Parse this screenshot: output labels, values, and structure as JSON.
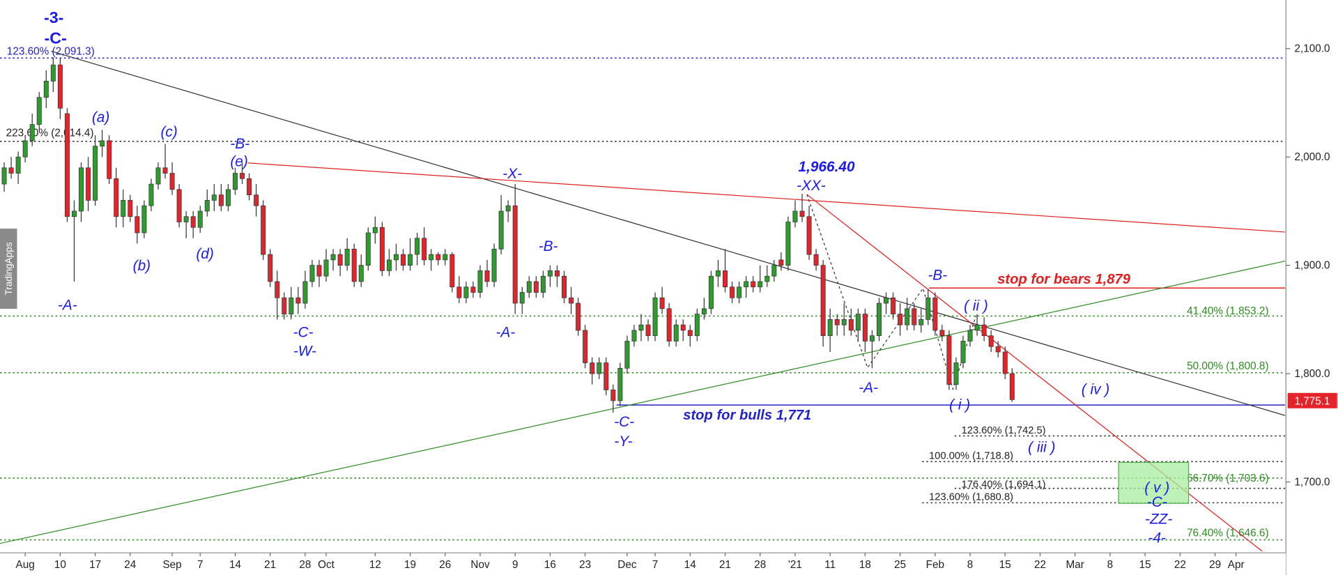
{
  "chart_data": {
    "type": "candlestick",
    "watermark": "TradingApps",
    "up_color": "#2f9b2f",
    "down_color": "#e5232b",
    "ylim": [
      1634.6,
      2144.9
    ],
    "yticks": [
      {
        "value": 2100,
        "label": "2,100.0"
      },
      {
        "value": 2000,
        "label": "2,000.0"
      },
      {
        "value": 1900,
        "label": "1,900.0"
      },
      {
        "value": 1800,
        "label": "1,800.0"
      },
      {
        "value": 1700,
        "label": "1,700.0"
      }
    ],
    "xlim": [
      -0.6,
      183
    ],
    "xticks": [
      {
        "value": 3,
        "label": "Aug"
      },
      {
        "value": 8,
        "label": "10"
      },
      {
        "value": 13,
        "label": "17"
      },
      {
        "value": 18,
        "label": "24"
      },
      {
        "value": 24,
        "label": "Sep"
      },
      {
        "value": 28,
        "label": "7"
      },
      {
        "value": 33,
        "label": "14"
      },
      {
        "value": 38,
        "label": "21"
      },
      {
        "value": 43,
        "label": "28"
      },
      {
        "value": 46,
        "label": "Oct"
      },
      {
        "value": 53,
        "label": "12"
      },
      {
        "value": 58,
        "label": "19"
      },
      {
        "value": 63,
        "label": "26"
      },
      {
        "value": 68,
        "label": "Nov"
      },
      {
        "value": 73,
        "label": "9"
      },
      {
        "value": 78,
        "label": "16"
      },
      {
        "value": 83,
        "label": "23"
      },
      {
        "value": 89,
        "label": "Dec"
      },
      {
        "value": 93,
        "label": "7"
      },
      {
        "value": 98,
        "label": "14"
      },
      {
        "value": 103,
        "label": "21"
      },
      {
        "value": 108,
        "label": "28"
      },
      {
        "value": 113,
        "label": "'21"
      },
      {
        "value": 118,
        "label": "11"
      },
      {
        "value": 123,
        "label": "18"
      },
      {
        "value": 128,
        "label": "25"
      },
      {
        "value": 133,
        "label": "Feb"
      },
      {
        "value": 138,
        "label": "8"
      },
      {
        "value": 143,
        "label": "15"
      },
      {
        "value": 148,
        "label": "22"
      },
      {
        "value": 153,
        "label": "Mar"
      },
      {
        "value": 158,
        "label": "8"
      },
      {
        "value": 163,
        "label": "15"
      },
      {
        "value": 168,
        "label": "22"
      },
      {
        "value": 173,
        "label": "29"
      },
      {
        "value": 176,
        "label": "Apr"
      }
    ],
    "last": {
      "value": 1775.1,
      "label": "1,775.1",
      "color": "#e5232b"
    },
    "levels": [
      {
        "value": 2091.3,
        "label": "123.60% (2,091.3)",
        "color": "#2222cc",
        "style": "dotted"
      },
      {
        "value": 2014.4,
        "label": "223.60% (2,014.4)",
        "color": "#333333",
        "style": "dotted"
      },
      {
        "value": 1853.2,
        "label": "41.40% (1,853.2)",
        "color": "#2e8b22",
        "style": "dotted"
      },
      {
        "value": 1800.8,
        "label": "50.00% (1,800.8)",
        "color": "#2e8b22",
        "style": "dotted"
      },
      {
        "value": 1742.5,
        "label": "123.60% (1,742.5)",
        "color": "#333333",
        "style": "dotted"
      },
      {
        "value": 1718.8,
        "label": "100.00% (1,718.8)",
        "color": "#333333",
        "style": "dotted"
      },
      {
        "value": 1703.6,
        "label": "66.70% (1,703.6)",
        "color": "#2e8b22",
        "style": "dotted"
      },
      {
        "value": 1694.1,
        "label": "176.40% (1,694.1)",
        "color": "#333333",
        "style": "dotted"
      },
      {
        "value": 1680.8,
        "label": "123.60% (1,680.8)",
        "color": "#333333",
        "style": "dotted"
      },
      {
        "value": 1646.6,
        "label": "76.40% (1,646.6)",
        "color": "#2e8b22",
        "style": "dotted"
      },
      {
        "value": 1879,
        "label": "stop for bears 1,879",
        "color": "#e02020",
        "style": "solid"
      },
      {
        "value": 1771,
        "label": "stop for bulls 1,771",
        "color": "#2222cc",
        "style": "solid"
      }
    ],
    "annotations": [
      "-3-",
      "-C-",
      "(a)",
      "(c)",
      "-B-",
      "(e)",
      "(b)",
      "(d)",
      "-A-",
      "-C-",
      "-W-",
      "-X-",
      "-B-",
      "-A-",
      "1,966.40",
      "-XX-",
      "-C-",
      "-Y-",
      "-B-",
      "( ii )",
      "-A-",
      "( i )",
      "( iii )",
      "( iv )",
      "( v )",
      "-C-",
      "-ZZ-",
      "-4-"
    ],
    "ohlc": [
      [
        1975,
        1995,
        1968,
        1990
      ],
      [
        1990,
        2000,
        1980,
        1985
      ],
      [
        1985,
        2005,
        1975,
        2000
      ],
      [
        2000,
        2020,
        1995,
        2015
      ],
      [
        2015,
        2040,
        2010,
        2030
      ],
      [
        2030,
        2060,
        2025,
        2055
      ],
      [
        2055,
        2080,
        2045,
        2070
      ],
      [
        2070,
        2092,
        2060,
        2085
      ],
      [
        2085,
        2091,
        2035,
        2045
      ],
      [
        2040,
        2045,
        1940,
        1945
      ],
      [
        1945,
        1960,
        1885,
        1950
      ],
      [
        1950,
        1995,
        1940,
        1990
      ],
      [
        1990,
        2000,
        1950,
        1960
      ],
      [
        1960,
        2020,
        1955,
        2010
      ],
      [
        2010,
        2025,
        2000,
        2015
      ],
      [
        2015,
        2020,
        1975,
        1980
      ],
      [
        1980,
        1990,
        1935,
        1945
      ],
      [
        1945,
        1970,
        1935,
        1960
      ],
      [
        1960,
        1965,
        1940,
        1945
      ],
      [
        1945,
        1955,
        1920,
        1930
      ],
      [
        1930,
        1960,
        1925,
        1955
      ],
      [
        1955,
        1980,
        1950,
        1975
      ],
      [
        1975,
        1995,
        1970,
        1990
      ],
      [
        1990,
        2012,
        1980,
        1985
      ],
      [
        1985,
        1995,
        1965,
        1970
      ],
      [
        1970,
        1975,
        1935,
        1940
      ],
      [
        1940,
        1950,
        1925,
        1945
      ],
      [
        1945,
        1950,
        1925,
        1935
      ],
      [
        1935,
        1955,
        1930,
        1950
      ],
      [
        1950,
        1970,
        1945,
        1960
      ],
      [
        1960,
        1975,
        1950,
        1965
      ],
      [
        1965,
        1975,
        1950,
        1955
      ],
      [
        1955,
        1975,
        1950,
        1970
      ],
      [
        1970,
        1990,
        1965,
        1985
      ],
      [
        1985,
        1995,
        1975,
        1980
      ],
      [
        1980,
        1985,
        1960,
        1965
      ],
      [
        1965,
        1975,
        1945,
        1955
      ],
      [
        1955,
        1960,
        1905,
        1910
      ],
      [
        1910,
        1915,
        1880,
        1885
      ],
      [
        1885,
        1895,
        1850,
        1870
      ],
      [
        1870,
        1875,
        1850,
        1855
      ],
      [
        1855,
        1880,
        1850,
        1870
      ],
      [
        1870,
        1880,
        1855,
        1865
      ],
      [
        1865,
        1895,
        1860,
        1885
      ],
      [
        1885,
        1905,
        1880,
        1900
      ],
      [
        1900,
        1905,
        1880,
        1890
      ],
      [
        1890,
        1915,
        1885,
        1905
      ],
      [
        1905,
        1915,
        1895,
        1910
      ],
      [
        1910,
        1915,
        1890,
        1900
      ],
      [
        1900,
        1925,
        1895,
        1915
      ],
      [
        1915,
        1920,
        1880,
        1885
      ],
      [
        1885,
        1910,
        1880,
        1900
      ],
      [
        1900,
        1935,
        1895,
        1930
      ],
      [
        1930,
        1945,
        1920,
        1935
      ],
      [
        1935,
        1940,
        1890,
        1895
      ],
      [
        1895,
        1915,
        1890,
        1905
      ],
      [
        1905,
        1920,
        1895,
        1910
      ],
      [
        1910,
        1915,
        1895,
        1900
      ],
      [
        1900,
        1925,
        1895,
        1910
      ],
      [
        1910,
        1930,
        1900,
        1925
      ],
      [
        1925,
        1935,
        1900,
        1905
      ],
      [
        1905,
        1915,
        1895,
        1910
      ],
      [
        1910,
        1912,
        1900,
        1905
      ],
      [
        1905,
        1915,
        1900,
        1910
      ],
      [
        1910,
        1912,
        1875,
        1880
      ],
      [
        1880,
        1890,
        1865,
        1870
      ],
      [
        1870,
        1885,
        1865,
        1880
      ],
      [
        1880,
        1885,
        1870,
        1875
      ],
      [
        1875,
        1900,
        1870,
        1895
      ],
      [
        1895,
        1905,
        1880,
        1885
      ],
      [
        1885,
        1920,
        1880,
        1915
      ],
      [
        1915,
        1965,
        1910,
        1950
      ],
      [
        1950,
        1960,
        1940,
        1955
      ],
      [
        1955,
        1975,
        1855,
        1865
      ],
      [
        1865,
        1880,
        1855,
        1875
      ],
      [
        1875,
        1890,
        1870,
        1885
      ],
      [
        1885,
        1890,
        1870,
        1875
      ],
      [
        1875,
        1895,
        1870,
        1890
      ],
      [
        1890,
        1900,
        1880,
        1895
      ],
      [
        1895,
        1900,
        1880,
        1890
      ],
      [
        1890,
        1895,
        1865,
        1870
      ],
      [
        1870,
        1880,
        1855,
        1865
      ],
      [
        1865,
        1870,
        1835,
        1840
      ],
      [
        1840,
        1845,
        1805,
        1810
      ],
      [
        1810,
        1815,
        1790,
        1800
      ],
      [
        1800,
        1815,
        1795,
        1810
      ],
      [
        1810,
        1815,
        1780,
        1785
      ],
      [
        1785,
        1790,
        1764,
        1775
      ],
      [
        1775,
        1810,
        1770,
        1805
      ],
      [
        1805,
        1835,
        1800,
        1830
      ],
      [
        1830,
        1845,
        1825,
        1840
      ],
      [
        1840,
        1855,
        1830,
        1845
      ],
      [
        1845,
        1850,
        1830,
        1835
      ],
      [
        1835,
        1875,
        1830,
        1870
      ],
      [
        1870,
        1880,
        1855,
        1860
      ],
      [
        1860,
        1865,
        1825,
        1830
      ],
      [
        1830,
        1850,
        1825,
        1845
      ],
      [
        1845,
        1850,
        1830,
        1840
      ],
      [
        1840,
        1845,
        1825,
        1835
      ],
      [
        1835,
        1860,
        1830,
        1855
      ],
      [
        1855,
        1870,
        1850,
        1860
      ],
      [
        1860,
        1895,
        1855,
        1890
      ],
      [
        1890,
        1905,
        1880,
        1895
      ],
      [
        1895,
        1915,
        1875,
        1880
      ],
      [
        1880,
        1885,
        1865,
        1870
      ],
      [
        1870,
        1885,
        1865,
        1880
      ],
      [
        1880,
        1890,
        1870,
        1885
      ],
      [
        1885,
        1890,
        1875,
        1880
      ],
      [
        1880,
        1900,
        1875,
        1885
      ],
      [
        1885,
        1900,
        1880,
        1890
      ],
      [
        1890,
        1905,
        1885,
        1900
      ],
      [
        1905,
        1912,
        1895,
        1900
      ],
      [
        1900,
        1945,
        1895,
        1940
      ],
      [
        1940,
        1960,
        1935,
        1950
      ],
      [
        1950,
        1966,
        1940,
        1945
      ],
      [
        1945,
        1955,
        1905,
        1910
      ],
      [
        1910,
        1915,
        1895,
        1900
      ],
      [
        1900,
        1905,
        1825,
        1835
      ],
      [
        1835,
        1860,
        1820,
        1850
      ],
      [
        1850,
        1855,
        1835,
        1845
      ],
      [
        1845,
        1865,
        1835,
        1850
      ],
      [
        1850,
        1860,
        1835,
        1840
      ],
      [
        1840,
        1860,
        1830,
        1855
      ],
      [
        1855,
        1860,
        1820,
        1830
      ],
      [
        1830,
        1840,
        1805,
        1835
      ],
      [
        1835,
        1870,
        1830,
        1865
      ],
      [
        1865,
        1875,
        1855,
        1870
      ],
      [
        1870,
        1875,
        1850,
        1855
      ],
      [
        1855,
        1865,
        1835,
        1845
      ],
      [
        1845,
        1870,
        1840,
        1860
      ],
      [
        1860,
        1865,
        1840,
        1845
      ],
      [
        1845,
        1860,
        1838,
        1850
      ],
      [
        1850,
        1878,
        1845,
        1870
      ],
      [
        1870,
        1875,
        1835,
        1840
      ],
      [
        1840,
        1845,
        1830,
        1835
      ],
      [
        1835,
        1840,
        1785,
        1790
      ],
      [
        1790,
        1815,
        1785,
        1810
      ],
      [
        1810,
        1835,
        1805,
        1830
      ],
      [
        1830,
        1845,
        1825,
        1840
      ],
      [
        1840,
        1855,
        1835,
        1845
      ],
      [
        1845,
        1852,
        1830,
        1835
      ],
      [
        1835,
        1840,
        1820,
        1825
      ],
      [
        1825,
        1830,
        1815,
        1820
      ],
      [
        1820,
        1825,
        1795,
        1800
      ],
      [
        1800,
        1805,
        1774,
        1776
      ]
    ]
  }
}
